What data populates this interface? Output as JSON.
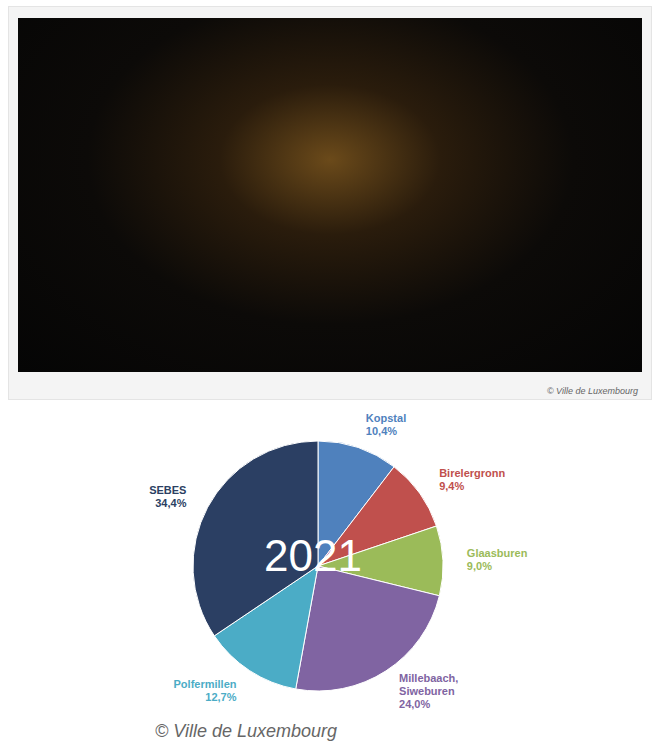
{
  "photo_credit": "© Ville de Luxembourg",
  "chart_credit": "© Ville de Luxembourg",
  "chart_data": {
    "type": "pie",
    "title": "2021",
    "categories": [
      "Kopstal",
      "Birelergronn",
      "Glaasburen",
      "Millebaach, Siweburen",
      "Polfermillen",
      "SEBES"
    ],
    "values": [
      10.4,
      9.4,
      9.0,
      24.0,
      12.7,
      34.4
    ],
    "value_labels": [
      "10,4%",
      "9,4%",
      "9,0%",
      "24,0%",
      "12,7%",
      "34,4%"
    ],
    "colors": [
      "#4f81bd",
      "#c0504d",
      "#9bbb59",
      "#8064a2",
      "#4bacc6",
      "#2b3f63"
    ],
    "data_labels": true
  }
}
